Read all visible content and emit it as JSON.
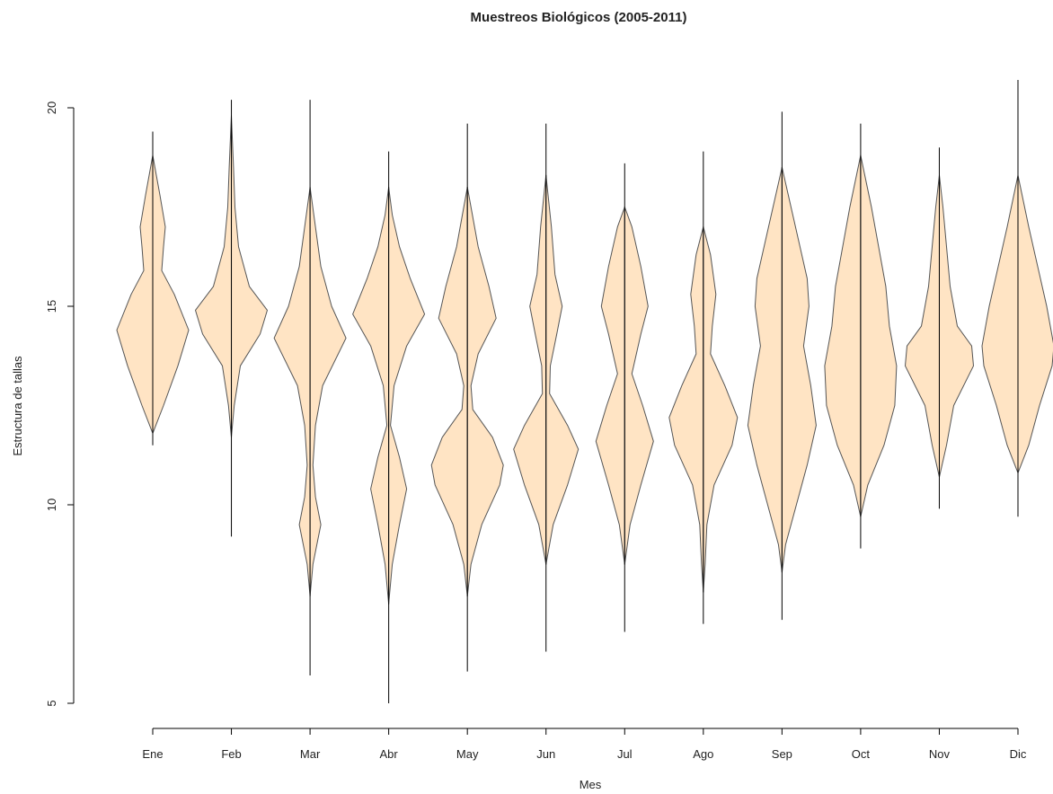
{
  "chart_data": {
    "type": "beanplot",
    "title": "Muestreos Biológicos (2005-2011)",
    "x_label": "Mes",
    "y_label": "Estructura de tallas",
    "ylim": [
      5,
      20
    ],
    "yticks": [
      5,
      10,
      15,
      20
    ],
    "fill_color": "#ffe4c4",
    "outline_color": "#555555",
    "categories": [
      "Ene",
      "Feb",
      "Mar",
      "Abr",
      "May",
      "Jun",
      "Jul",
      "Ago",
      "Sep",
      "Oct",
      "Nov",
      "Dic"
    ],
    "min": [
      11.5,
      9.2,
      5.7,
      5.0,
      5.8,
      6.3,
      6.8,
      7.0,
      7.1,
      8.9,
      9.9,
      9.7
    ],
    "max": [
      19.4,
      20.2,
      20.2,
      18.9,
      19.6,
      19.6,
      18.6,
      18.9,
      19.9,
      19.6,
      19.0,
      20.7
    ],
    "density_y": [
      [
        11.8,
        12.5,
        13.5,
        14.4,
        15.3,
        15.9,
        16.5,
        17.0,
        17.8,
        18.8
      ],
      [
        11.7,
        12.5,
        13.5,
        14.3,
        14.9,
        15.5,
        16.5,
        17.5,
        18.5,
        19.8
      ],
      [
        7.7,
        8.5,
        9.5,
        10.2,
        11,
        12,
        13,
        14.2,
        15,
        16,
        17,
        18
      ],
      [
        7.5,
        8.5,
        9.5,
        10.4,
        11.2,
        12,
        13,
        14,
        14.8,
        15.7,
        16.5,
        17.3,
        18
      ],
      [
        7.7,
        8.5,
        9.5,
        10.5,
        11,
        11.7,
        12.4,
        13,
        13.8,
        14.7,
        15.5,
        16.5,
        17.5,
        18
      ],
      [
        8.5,
        9.5,
        10.5,
        11.4,
        12,
        12.8,
        13.5,
        14.3,
        15,
        15.8,
        17,
        18.3
      ],
      [
        8.5,
        9.5,
        10.5,
        11.6,
        12.5,
        13.3,
        14.3,
        15,
        16,
        17,
        17.5
      ],
      [
        7.8,
        8.5,
        9.5,
        10.5,
        11.5,
        12.2,
        13,
        13.8,
        14.5,
        15.3,
        16.3,
        17
      ],
      [
        8.3,
        9,
        10,
        11,
        12,
        13,
        14,
        15,
        15.7,
        16.5,
        17.5,
        18.5
      ],
      [
        9.7,
        10.5,
        11.5,
        12.5,
        13.5,
        14.5,
        15.5,
        16.5,
        17.5,
        18.8
      ],
      [
        10.7,
        11.5,
        12.5,
        13.5,
        14,
        14.5,
        15.5,
        16.5,
        17.5,
        18.3
      ],
      [
        10.8,
        11.5,
        12.5,
        13.5,
        14,
        15,
        16,
        17,
        18.3
      ]
    ],
    "density": [
      [
        0,
        0.3,
        0.7,
        1.0,
        0.6,
        0.25,
        0.3,
        0.35,
        0.2,
        0
      ],
      [
        0,
        0.08,
        0.25,
        0.8,
        1.0,
        0.5,
        0.2,
        0.1,
        0.06,
        0
      ],
      [
        0,
        0.08,
        0.3,
        0.15,
        0.08,
        0.15,
        0.35,
        1.0,
        0.6,
        0.3,
        0.15,
        0
      ],
      [
        0,
        0.1,
        0.3,
        0.5,
        0.3,
        0.05,
        0.15,
        0.5,
        1.0,
        0.6,
        0.3,
        0.1,
        0
      ],
      [
        0,
        0.1,
        0.4,
        0.9,
        1.0,
        0.7,
        0.15,
        0.1,
        0.3,
        0.8,
        0.6,
        0.3,
        0.1,
        0
      ],
      [
        0,
        0.2,
        0.6,
        0.9,
        0.6,
        0.1,
        0.12,
        0.3,
        0.45,
        0.25,
        0.15,
        0
      ],
      [
        0,
        0.15,
        0.45,
        0.8,
        0.5,
        0.2,
        0.45,
        0.65,
        0.45,
        0.2,
        0
      ],
      [
        0,
        0.05,
        0.1,
        0.3,
        0.8,
        0.95,
        0.6,
        0.2,
        0.25,
        0.35,
        0.2,
        0
      ],
      [
        0,
        0.1,
        0.4,
        0.7,
        0.95,
        0.8,
        0.6,
        0.75,
        0.7,
        0.5,
        0.25,
        0
      ],
      [
        0,
        0.2,
        0.65,
        0.95,
        1.0,
        0.8,
        0.7,
        0.5,
        0.3,
        0
      ],
      [
        0,
        0.2,
        0.4,
        0.95,
        0.9,
        0.5,
        0.3,
        0.2,
        0.1,
        0
      ],
      [
        0,
        0.3,
        0.6,
        0.95,
        1.0,
        0.8,
        0.55,
        0.3,
        0
      ]
    ]
  }
}
